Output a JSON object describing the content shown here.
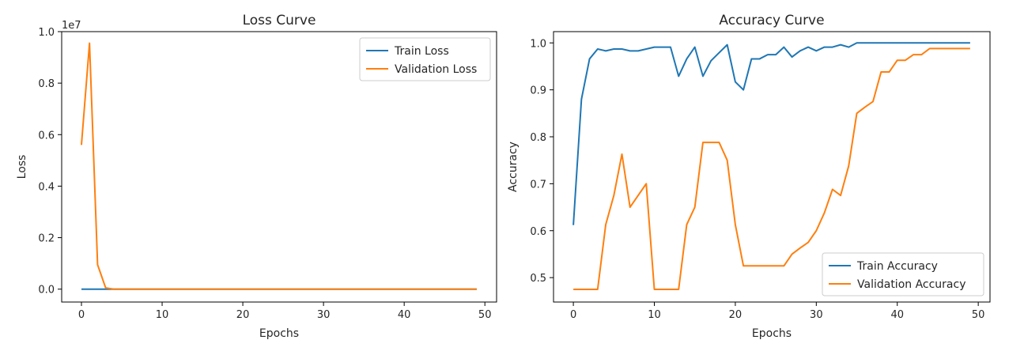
{
  "chart_data": [
    {
      "type": "line",
      "title": "Loss Curve",
      "xlabel": "Epochs",
      "ylabel": "Loss",
      "offset_text": "1e7",
      "xlim": [
        -2.45,
        51.45
      ],
      "ylim": [
        -0.05,
        1.0
      ],
      "xticks": [
        0,
        10,
        20,
        30,
        40,
        50
      ],
      "yticks": [
        0.0,
        0.2,
        0.4,
        0.6,
        0.8,
        1.0
      ],
      "ytick_labels": [
        "0.0",
        "0.2",
        "0.4",
        "0.6",
        "0.8",
        "1.0"
      ],
      "legend_position": "upper right",
      "x": [
        0,
        1,
        2,
        3,
        4,
        5,
        6,
        7,
        8,
        9,
        10,
        11,
        12,
        13,
        14,
        15,
        16,
        17,
        18,
        19,
        20,
        21,
        22,
        23,
        24,
        25,
        26,
        27,
        28,
        29,
        30,
        31,
        32,
        33,
        34,
        35,
        36,
        37,
        38,
        39,
        40,
        41,
        42,
        43,
        44,
        45,
        46,
        47,
        48,
        49
      ],
      "series": [
        {
          "name": "Train Loss",
          "color": "#1f77b4",
          "values": [
            0.0,
            0.0,
            0.0,
            0.0,
            0.0,
            0.0,
            0.0,
            0.0,
            0.0,
            0.0,
            0.0,
            0.0,
            0.0,
            0.0,
            0.0,
            0.0,
            0.0,
            0.0,
            0.0,
            0.0,
            0.0,
            0.0,
            0.0,
            0.0,
            0.0,
            0.0,
            0.0,
            0.0,
            0.0,
            0.0,
            0.0,
            0.0,
            0.0,
            0.0,
            0.0,
            0.0,
            0.0,
            0.0,
            0.0,
            0.0,
            0.0,
            0.0,
            0.0,
            0.0,
            0.0,
            0.0,
            0.0,
            0.0,
            0.0,
            0.0
          ]
        },
        {
          "name": "Validation Loss",
          "color": "#ff7f0e",
          "values": [
            0.56,
            0.955,
            0.095,
            0.005,
            0.0,
            0.0,
            0.0,
            0.0,
            0.0,
            0.0,
            0.0,
            0.0,
            0.0,
            0.0,
            0.0,
            0.0,
            0.0,
            0.0,
            0.0,
            0.0,
            0.0,
            0.0,
            0.0,
            0.0,
            0.0,
            0.0,
            0.0,
            0.0,
            0.0,
            0.0,
            0.0,
            0.0,
            0.0,
            0.0,
            0.0,
            0.0,
            0.0,
            0.0,
            0.0,
            0.0,
            0.0,
            0.0,
            0.0,
            0.0,
            0.0,
            0.0,
            0.0,
            0.0,
            0.0,
            0.0
          ]
        }
      ]
    },
    {
      "type": "line",
      "title": "Accuracy Curve",
      "xlabel": "Epochs",
      "ylabel": "Accuracy",
      "xlim": [
        -2.45,
        51.45
      ],
      "ylim": [
        0.448,
        1.024
      ],
      "xticks": [
        0,
        10,
        20,
        30,
        40,
        50
      ],
      "yticks": [
        0.5,
        0.6,
        0.7,
        0.8,
        0.9,
        1.0
      ],
      "ytick_labels": [
        "0.5",
        "0.6",
        "0.7",
        "0.8",
        "0.9",
        "1.0"
      ],
      "legend_position": "lower right",
      "x": [
        0,
        1,
        2,
        3,
        4,
        5,
        6,
        7,
        8,
        9,
        10,
        11,
        12,
        13,
        14,
        15,
        16,
        17,
        18,
        19,
        20,
        21,
        22,
        23,
        24,
        25,
        26,
        27,
        28,
        29,
        30,
        31,
        32,
        33,
        34,
        35,
        36,
        37,
        38,
        39,
        40,
        41,
        42,
        43,
        44,
        45,
        46,
        47,
        48,
        49
      ],
      "series": [
        {
          "name": "Train Accuracy",
          "color": "#1f77b4",
          "values": [
            0.612,
            0.88,
            0.966,
            0.987,
            0.983,
            0.987,
            0.987,
            0.983,
            0.983,
            0.987,
            0.991,
            0.991,
            0.991,
            0.929,
            0.966,
            0.991,
            0.929,
            0.962,
            0.979,
            0.996,
            0.917,
            0.9,
            0.966,
            0.966,
            0.975,
            0.975,
            0.991,
            0.97,
            0.983,
            0.991,
            0.983,
            0.991,
            0.991,
            0.996,
            0.991,
            1.0,
            1.0,
            1.0,
            1.0,
            1.0,
            1.0,
            1.0,
            1.0,
            1.0,
            1.0,
            1.0,
            1.0,
            1.0,
            1.0,
            1.0
          ]
        },
        {
          "name": "Validation Accuracy",
          "color": "#ff7f0e",
          "values": [
            0.475,
            0.475,
            0.475,
            0.475,
            0.613,
            0.675,
            0.763,
            0.65,
            0.675,
            0.7,
            0.475,
            0.475,
            0.475,
            0.475,
            0.613,
            0.65,
            0.788,
            0.788,
            0.788,
            0.75,
            0.613,
            0.525,
            0.525,
            0.525,
            0.525,
            0.525,
            0.525,
            0.55,
            0.563,
            0.575,
            0.6,
            0.638,
            0.688,
            0.675,
            0.738,
            0.85,
            0.863,
            0.875,
            0.938,
            0.938,
            0.963,
            0.963,
            0.975,
            0.975,
            0.988,
            0.988,
            0.988,
            0.988,
            0.988,
            0.988
          ]
        }
      ]
    }
  ]
}
